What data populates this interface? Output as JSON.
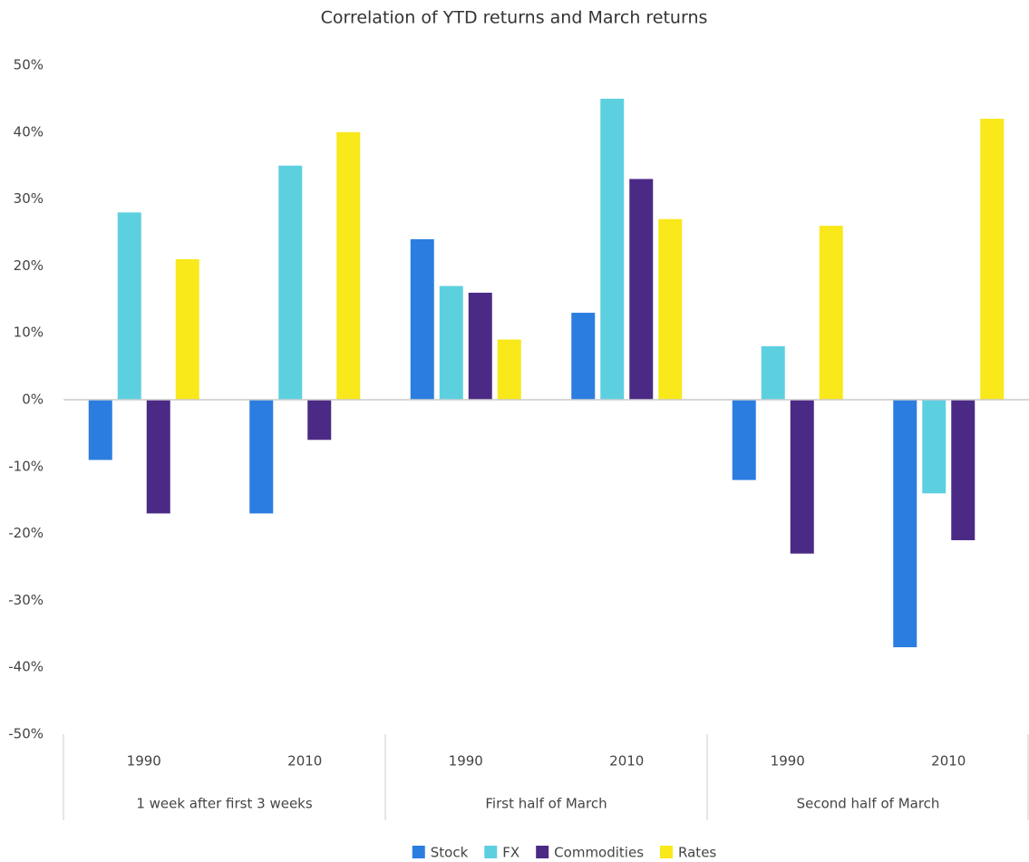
{
  "chart_data": {
    "type": "bar",
    "title": "Correlation of YTD returns and March returns",
    "categories": [
      "1990",
      "2010",
      "1990",
      "2010",
      "1990",
      "2010"
    ],
    "groups": [
      "1 week after first 3 weeks",
      "First half of March",
      "Second half of March"
    ],
    "series": [
      {
        "name": "Stock",
        "color": "#2b7de0",
        "values": [
          -9,
          -17,
          24,
          13,
          -12,
          -37
        ]
      },
      {
        "name": "FX",
        "color": "#5dd0e0",
        "values": [
          28,
          35,
          17,
          45,
          8,
          -14
        ]
      },
      {
        "name": "Commodities",
        "color": "#4b2a86",
        "values": [
          -17,
          -6,
          16,
          33,
          -23,
          -21
        ]
      },
      {
        "name": "Rates",
        "color": "#f9e81a",
        "values": [
          21,
          40,
          9,
          27,
          26,
          42
        ]
      }
    ],
    "ylim": [
      -50,
      50
    ],
    "yticks": [
      {
        "value": -50,
        "label": "-50%"
      },
      {
        "value": -40,
        "label": "-40%"
      },
      {
        "value": -30,
        "label": "-30%"
      },
      {
        "value": -20,
        "label": "-20%"
      },
      {
        "value": -10,
        "label": "-10%"
      },
      {
        "value": 0,
        "label": "0%"
      },
      {
        "value": 10,
        "label": "10%"
      },
      {
        "value": 20,
        "label": "20%"
      },
      {
        "value": 30,
        "label": "30%"
      },
      {
        "value": 40,
        "label": "40%"
      },
      {
        "value": 50,
        "label": "50%"
      }
    ],
    "grid": false,
    "legend": "bottom"
  }
}
